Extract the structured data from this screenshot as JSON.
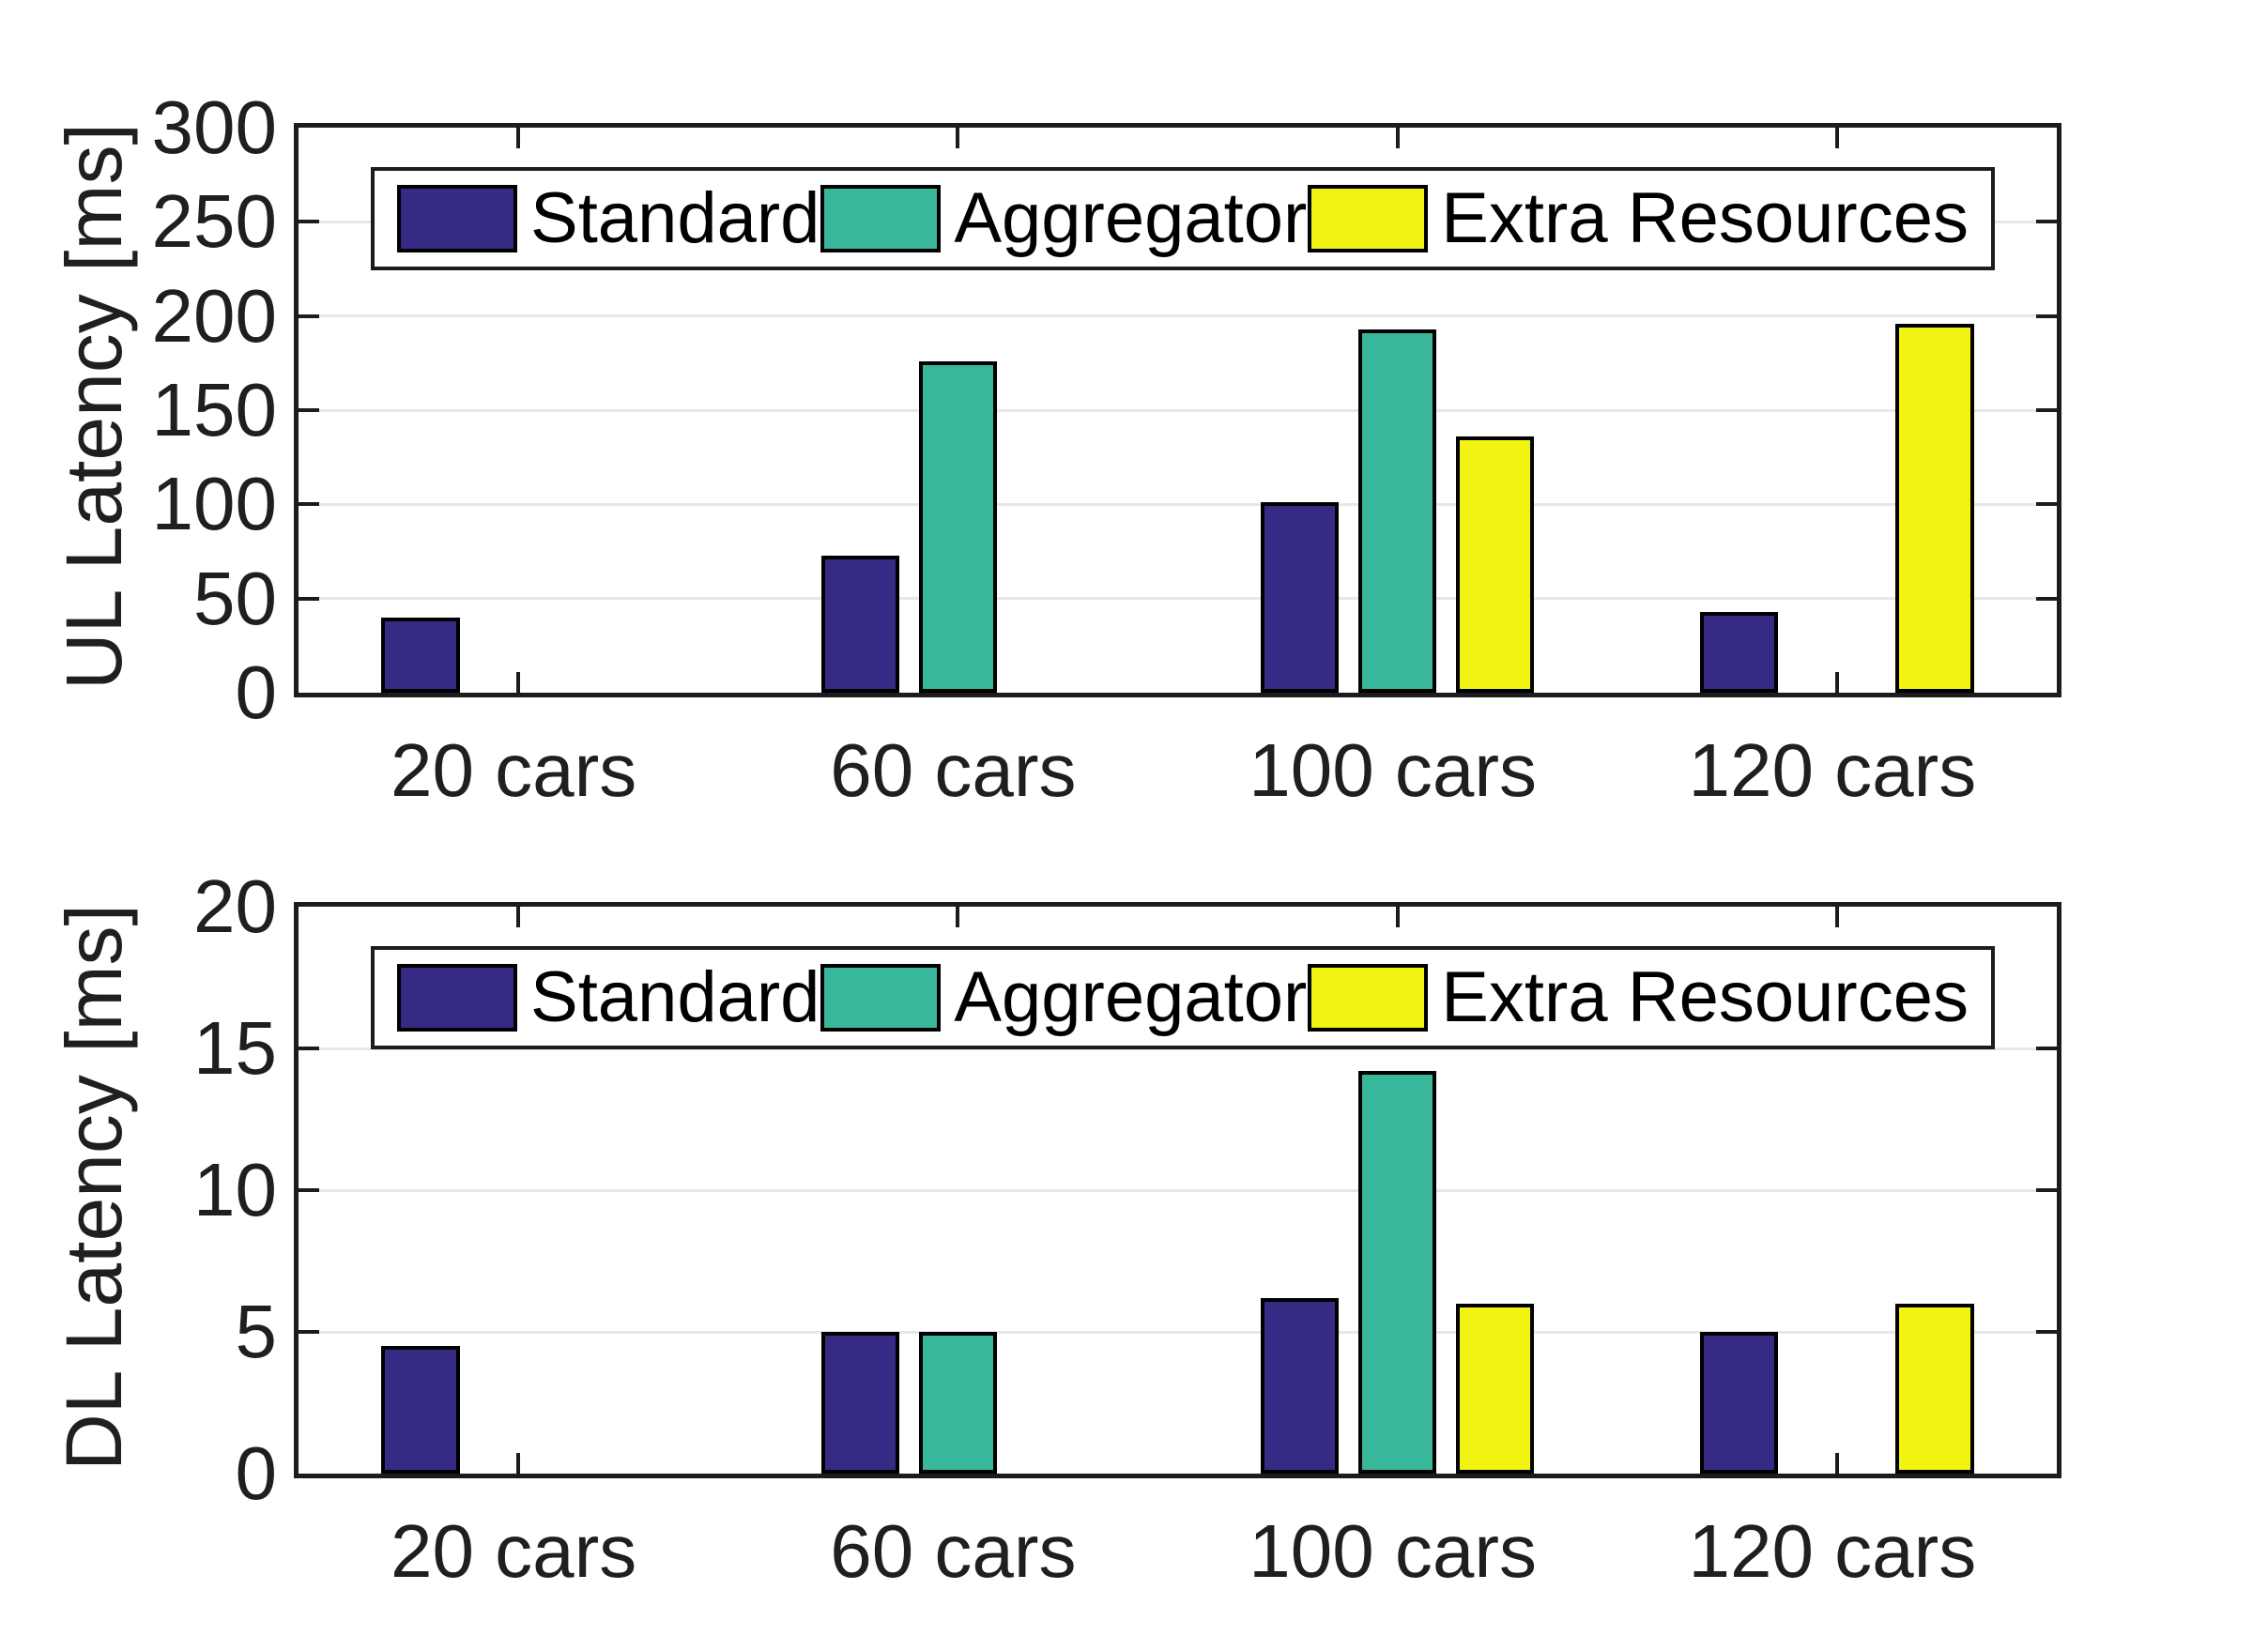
{
  "colors": {
    "standard": "#352B85",
    "aggregator": "#38B79B",
    "extra_resources": "#F2F311",
    "axis": "#1c1c1c",
    "grid": "#e7e7e7",
    "background": "#ffffff"
  },
  "chart_data": [
    {
      "type": "bar",
      "panel": "uplink",
      "title": "",
      "xlabel": "",
      "ylabel": "UL Latency [ms]",
      "categories": [
        "20 cars",
        "60 cars",
        "100 cars",
        "120 cars"
      ],
      "series": [
        {
          "name": "Standard",
          "color": "#352B85",
          "values": [
            40,
            73,
            101,
            43
          ]
        },
        {
          "name": "Aggregator",
          "color": "#38B79B",
          "values": [
            0,
            176,
            193,
            0
          ]
        },
        {
          "name": "Extra Resources",
          "color": "#F2F311",
          "values": [
            0,
            0,
            136,
            196
          ]
        }
      ],
      "ylim": [
        0,
        300
      ],
      "yticks": [
        0,
        50,
        100,
        150,
        200,
        250,
        300
      ],
      "grid": "horizontal",
      "legend_position": "top-inside"
    },
    {
      "type": "bar",
      "panel": "downlink",
      "title": "",
      "xlabel": "",
      "ylabel": "DL Latency [ms]",
      "categories": [
        "20 cars",
        "60 cars",
        "100 cars",
        "120 cars"
      ],
      "series": [
        {
          "name": "Standard",
          "color": "#352B85",
          "values": [
            4.5,
            5,
            6.2,
            5
          ]
        },
        {
          "name": "Aggregator",
          "color": "#38B79B",
          "values": [
            0,
            5,
            14.2,
            0
          ]
        },
        {
          "name": "Extra Resources",
          "color": "#F2F311",
          "values": [
            0,
            0,
            6,
            6
          ]
        }
      ],
      "ylim": [
        0,
        20
      ],
      "yticks": [
        0,
        5,
        10,
        15,
        20
      ],
      "grid": "horizontal",
      "legend_position": "top-inside"
    }
  ]
}
